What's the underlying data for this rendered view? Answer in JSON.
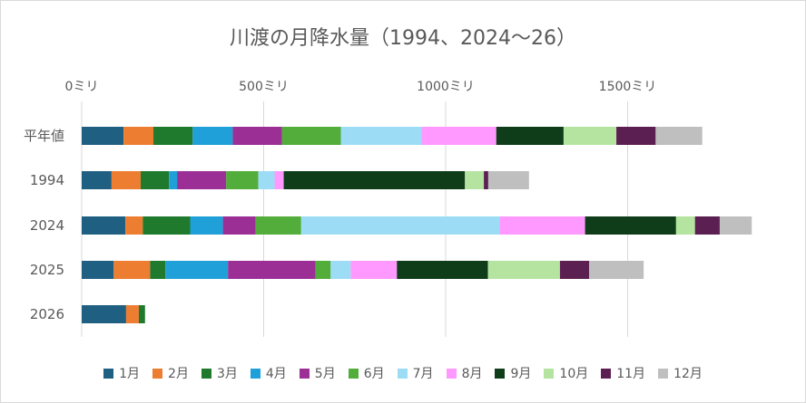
{
  "chart_data": {
    "type": "bar",
    "orientation": "horizontal",
    "stacked": true,
    "title": "川渡の月降水量（1994、2024～26）",
    "categories": [
      "平年値",
      "1994",
      "2024",
      "2025",
      "2026"
    ],
    "x_tick_labels": [
      "0ミリ",
      "500ミリ",
      "1000ミリ",
      "1500ミリ"
    ],
    "x_ticks": [
      0,
      500,
      1000,
      1500
    ],
    "xlim": [
      0,
      1750
    ],
    "axis_position": "top",
    "grid": true,
    "legend_position": "bottom",
    "series": [
      {
        "name": "1月",
        "color": "#1f5f82",
        "values": [
          115,
          82,
          120,
          88,
          122
        ]
      },
      {
        "name": "2月",
        "color": "#ed7d31",
        "values": [
          82,
          80,
          48,
          100,
          35
        ]
      },
      {
        "name": "3月",
        "color": "#1f7a2e",
        "values": [
          108,
          78,
          130,
          42,
          17
        ]
      },
      {
        "name": "4月",
        "color": "#1fa0d8",
        "values": [
          110,
          22,
          90,
          172,
          0
        ]
      },
      {
        "name": "5月",
        "color": "#9b2f96",
        "values": [
          135,
          135,
          90,
          240,
          0
        ]
      },
      {
        "name": "6月",
        "color": "#52ad3a",
        "values": [
          162,
          88,
          125,
          42,
          0
        ]
      },
      {
        "name": "7月",
        "color": "#9ddcf5",
        "values": [
          222,
          45,
          545,
          55,
          0
        ]
      },
      {
        "name": "8月",
        "color": "#ff99ff",
        "values": [
          205,
          25,
          235,
          127,
          0
        ]
      },
      {
        "name": "9月",
        "color": "#0f3d1a",
        "values": [
          185,
          498,
          250,
          250,
          0
        ]
      },
      {
        "name": "10月",
        "color": "#b4e4a0",
        "values": [
          145,
          52,
          52,
          198,
          0
        ]
      },
      {
        "name": "11月",
        "color": "#5c1f52",
        "values": [
          108,
          12,
          68,
          80,
          0
        ]
      },
      {
        "name": "12月",
        "color": "#bfbfbf",
        "values": [
          128,
          112,
          88,
          150,
          0
        ]
      }
    ]
  }
}
